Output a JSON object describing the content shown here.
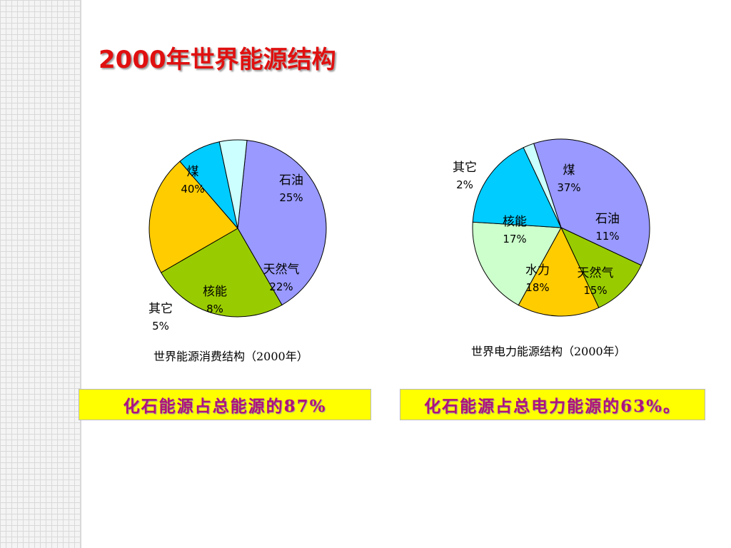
{
  "slide": {
    "title": "2000年世界能源结构"
  },
  "chart_data": [
    {
      "type": "pie",
      "caption": "世界能源消费结构（2000年）",
      "slices": [
        {
          "label": "煤",
          "value": 40,
          "display": "40%",
          "color": "#9999ff"
        },
        {
          "label": "石油",
          "value": 25,
          "display": "25%",
          "color": "#99cc00"
        },
        {
          "label": "天然气",
          "value": 22,
          "display": "22%",
          "color": "#ffcc00"
        },
        {
          "label": "核能",
          "value": 8,
          "display": "8%",
          "color": "#00ccff"
        },
        {
          "label": "其它",
          "value": 5,
          "display": "5%",
          "color": "#ccffff"
        }
      ]
    },
    {
      "type": "pie",
      "caption": "世界电力能源结构（2000年）",
      "slices": [
        {
          "label": "煤",
          "value": 37,
          "display": "37%",
          "color": "#9999ff"
        },
        {
          "label": "石油",
          "value": 11,
          "display": "11%",
          "color": "#99cc00"
        },
        {
          "label": "天然气",
          "value": 15,
          "display": "15%",
          "color": "#ffcc00"
        },
        {
          "label": "水力",
          "value": 18,
          "display": "18%",
          "color": "#ccffcc"
        },
        {
          "label": "核能",
          "value": 17,
          "display": "17%",
          "color": "#00ccff"
        },
        {
          "label": "其它",
          "value": 2,
          "display": "2%",
          "color": "#ccffff"
        }
      ]
    }
  ],
  "notes": {
    "left": "化石能源占总能源的87%",
    "right": "化石能源占总电力能源的63%。"
  }
}
